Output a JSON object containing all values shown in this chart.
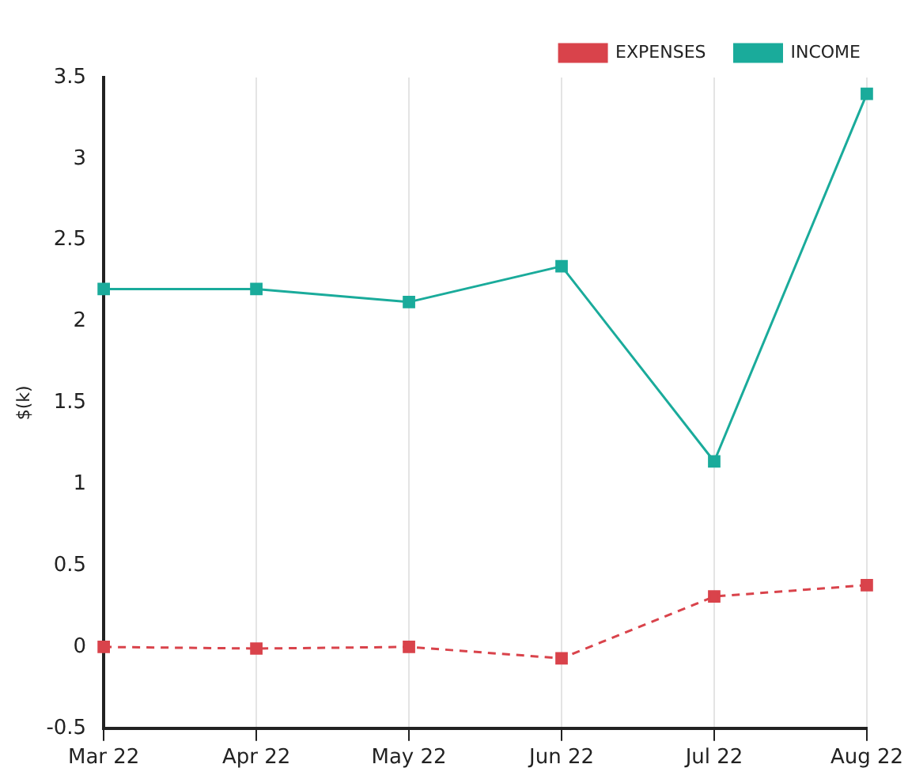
{
  "chart_data": {
    "type": "line",
    "ylabel": "$(k)",
    "categories": [
      "Mar 22",
      "Apr 22",
      "May 22",
      "Jun 22",
      "Jul 22",
      "Aug 22"
    ],
    "series": [
      {
        "name": "EXPENSES",
        "color": "#d9434b",
        "line_style": "dashed",
        "values": [
          0,
          -0.01,
          0,
          -0.07,
          0.31,
          0.38
        ]
      },
      {
        "name": "INCOME",
        "color": "#1aab9b",
        "line_style": "solid",
        "values": [
          2.2,
          2.2,
          2.12,
          2.34,
          1.14,
          3.4
        ]
      }
    ],
    "ylim": [
      -0.5,
      3.5
    ],
    "yticks": [
      -0.5,
      0,
      0.5,
      1,
      1.5,
      2,
      2.5,
      3,
      3.5
    ],
    "grid": "x",
    "legend": "top right",
    "marker": "square"
  }
}
